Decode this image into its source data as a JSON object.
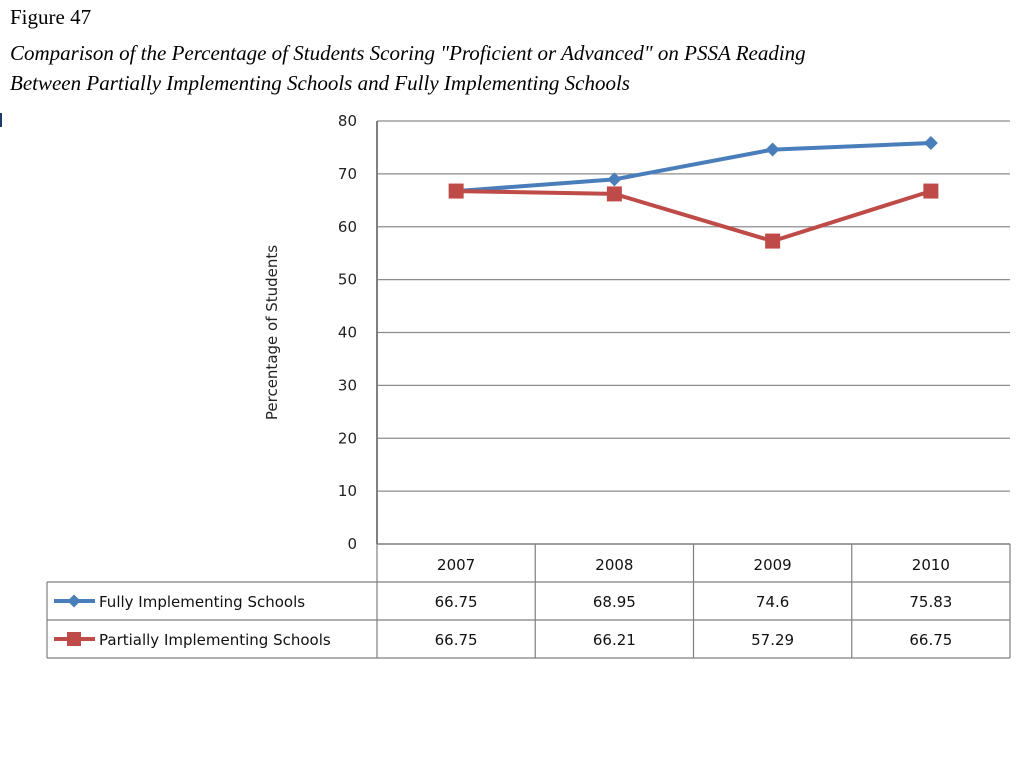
{
  "figure": {
    "label": "Figure 47",
    "title_line1": "Comparison of the Percentage of Students Scoring \"Proficient or Advanced\" on PSSA Reading",
    "title_line2": "Between Partially Implementing Schools and Fully Implementing Schools"
  },
  "chart_data": {
    "type": "line",
    "categories": [
      "2007",
      "2008",
      "2009",
      "2010"
    ],
    "series": [
      {
        "name": "Fully Implementing Schools",
        "values": [
          66.75,
          68.95,
          74.6,
          75.83
        ],
        "display": [
          "66.75",
          "68.95",
          "74.6",
          "75.83"
        ],
        "color": "#4a7ebb",
        "marker": "diamond"
      },
      {
        "name": "Partially Implementing Schools",
        "values": [
          66.75,
          66.21,
          57.29,
          66.75
        ],
        "display": [
          "66.75",
          "66.21",
          "57.29",
          "66.75"
        ],
        "color": "#be4b48",
        "marker": "square"
      }
    ],
    "ylabel": "Percentage of Students",
    "ylim": [
      0,
      80
    ],
    "yticks": [
      "0",
      "10",
      "20",
      "30",
      "40",
      "50",
      "60",
      "70",
      "80"
    ],
    "grid": true,
    "data_table": true
  }
}
